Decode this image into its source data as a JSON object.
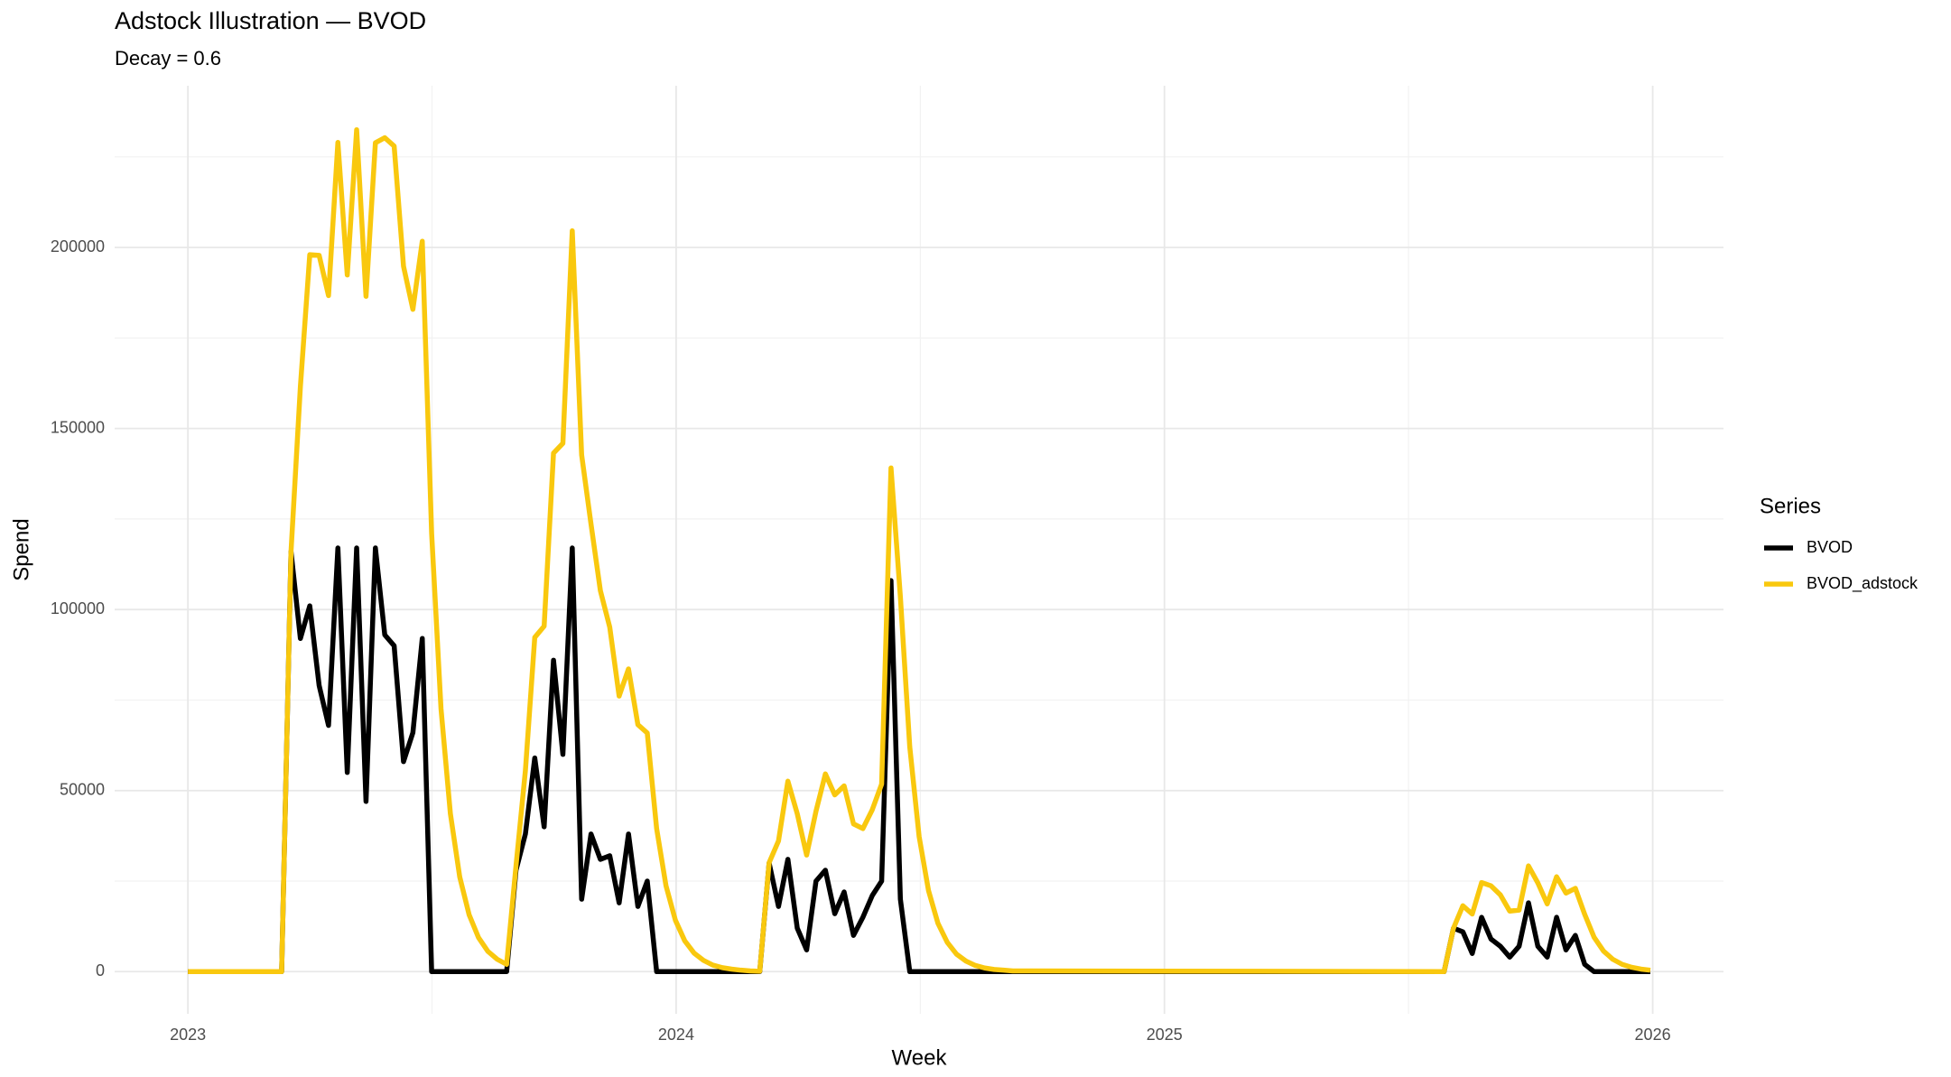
{
  "chart_data": {
    "type": "line",
    "title": "Adstock Illustration — BVOD",
    "subtitle": "Decay = 0.6",
    "x_label": "Week",
    "y_label": "Spend",
    "legend_title": "Series",
    "legend": "right",
    "grid": true,
    "xlim": [
      2022.85,
      2026.145
    ],
    "ylim": [
      -11650,
      244650
    ],
    "xticks": [
      2023,
      2024,
      2025,
      2026
    ],
    "yticks": [
      0,
      50000,
      100000,
      150000,
      200000
    ],
    "xminor_ticks": [
      2023.5,
      2024.5,
      2025.5
    ],
    "yminor_ticks": [
      25000,
      75000,
      125000,
      175000,
      225000
    ],
    "x": [
      2023,
      2023.192,
      2023.2112,
      2023.2304,
      2023.2496,
      2023.2688,
      2023.288,
      2023.3072,
      2023.3264,
      2023.3456,
      2023.3648,
      2023.384,
      2023.4032,
      2023.4224,
      2023.4416,
      2023.4608,
      2023.48,
      2023.4992,
      2023.5184,
      2023.5376,
      2023.5568,
      2023.576,
      2023.5952,
      2023.6144,
      2023.6336,
      2023.6528,
      2023.672,
      2023.6912,
      2023.7104,
      2023.7296,
      2023.7488,
      2023.768,
      2023.7872,
      2023.8064,
      2023.8256,
      2023.8448,
      2023.864,
      2023.8832,
      2023.9024,
      2023.9216,
      2023.9408,
      2023.96,
      2023.9792,
      2023.9984,
      2024.0176,
      2024.0368,
      2024.056,
      2024.0752,
      2024.0944,
      2024.1136,
      2024.1328,
      2024.152,
      2024.1712,
      2024.1904,
      2024.2096,
      2024.2288,
      2024.248,
      2024.2672,
      2024.2864,
      2024.3056,
      2024.3248,
      2024.344,
      2024.3632,
      2024.3824,
      2024.4016,
      2024.4208,
      2024.44,
      2024.4592,
      2024.4784,
      2024.4976,
      2024.5168,
      2024.536,
      2024.5552,
      2024.5744,
      2024.5936,
      2024.6128,
      2024.632,
      2024.6512,
      2024.6704,
      2024.6896,
      2025.5728,
      2025.592,
      2025.6112,
      2025.6304,
      2025.6496,
      2025.6688,
      2025.688,
      2025.7072,
      2025.7264,
      2025.7456,
      2025.7648,
      2025.784,
      2025.8032,
      2025.8224,
      2025.8416,
      2025.8608,
      2025.88,
      2025.8992,
      2025.9184,
      2025.9376,
      2025.9568,
      2025.976,
      2025.9952
    ],
    "series": [
      {
        "name": "BVOD",
        "color": "#000000",
        "values": [
          0,
          0,
          116000,
          92000,
          101000,
          79000,
          68000,
          117000,
          55000,
          117000,
          47000,
          117000,
          93000,
          90000,
          58000,
          66000,
          92000,
          0,
          0,
          0,
          0,
          0,
          0,
          0,
          0,
          0,
          28000,
          38000,
          59000,
          40000,
          86000,
          60000,
          117000,
          20000,
          38000,
          31000,
          32000,
          19000,
          38000,
          18000,
          25000,
          0,
          0,
          0,
          0,
          0,
          0,
          0,
          0,
          0,
          0,
          0,
          0,
          30000,
          18000,
          31000,
          12000,
          6000,
          25000,
          28000,
          16000,
          22000,
          10000,
          15000,
          21000,
          25000,
          108000,
          20000,
          0,
          0,
          0,
          0,
          0,
          0,
          0,
          0,
          0,
          0,
          0,
          0,
          0,
          12000,
          11000,
          5000,
          15000,
          9000,
          7000,
          4000,
          7000,
          19000,
          7000,
          4000,
          15000,
          6000,
          10000,
          2000,
          0,
          0,
          0,
          0,
          0,
          0,
          0
        ]
      },
      {
        "name": "BVOD_adstock",
        "color": "#F9C80E",
        "values": [
          0,
          0,
          116000,
          161600,
          198000,
          197800,
          186700,
          229000,
          192400,
          232500,
          186500,
          228900,
          230300,
          228000,
          194800,
          182900,
          201700,
          121000,
          72600,
          43600,
          26100,
          15700,
          9400,
          5600,
          3400,
          2000,
          29200,
          55500,
          92300,
          95400,
          143200,
          145900,
          204600,
          142700,
          123600,
          105200,
          95100,
          76100,
          83600,
          68200,
          65900,
          39500,
          23700,
          14200,
          8500,
          5100,
          3100,
          1800,
          1100,
          700,
          400,
          200,
          100,
          30100,
          36100,
          52600,
          43600,
          32200,
          44300,
          54600,
          48800,
          51300,
          40800,
          39500,
          44700,
          51800,
          139100,
          103500,
          62100,
          37300,
          22400,
          13400,
          8100,
          4800,
          2900,
          1700,
          1000,
          600,
          400,
          200,
          0,
          12000,
          18200,
          15900,
          24600,
          23700,
          21200,
          16700,
          17000,
          29200,
          24500,
          18700,
          26200,
          21700,
          23000,
          15800,
          9500,
          5700,
          3400,
          2000,
          1200,
          700,
          400
        ]
      }
    ]
  }
}
